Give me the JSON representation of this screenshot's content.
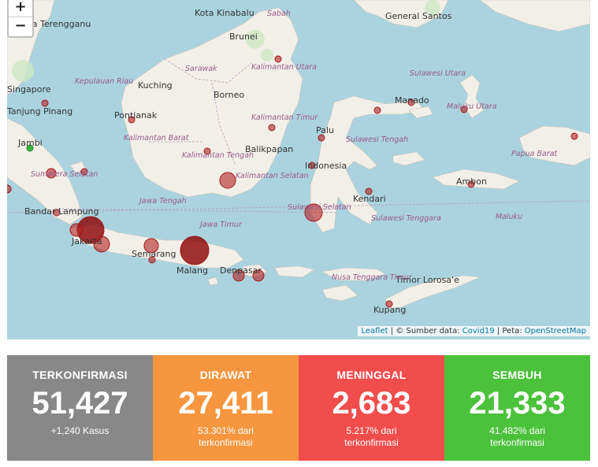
{
  "map": {
    "zoom_in": "+",
    "zoom_out": "−",
    "attribution": {
      "leaflet": "Leaflet",
      "source_text": " | © Sumber data: ",
      "source_link": "Covid19",
      "map_text": " | Peta: ",
      "map_link": "OpenStreetMap"
    },
    "city_labels": [
      "Kota Kinabalu",
      "Sabah",
      "General Santos",
      "ala Terengganu",
      "Brunei",
      "Singapore",
      "Kuching",
      "Borneo",
      "Manado",
      "Tanjung Pinang",
      "Pontianak",
      "Palu",
      "Jambi",
      "Balikpapan",
      "Indonesia",
      "Ambon",
      "Kendari",
      "Bandar Lampung",
      "Jakarta",
      "Semarang",
      "Malang",
      "Denpasar",
      "Timor Lorosa'e",
      "Kupang"
    ],
    "province_labels": [
      "Kepulauan Riau",
      "Sarawak",
      "Kalimantan Utara",
      "Sulawesi Utara",
      "Maluku Utara",
      "Kalimantan Timur",
      "Sulawesi Tengah",
      "Kalimantan Barat",
      "Papua Barat",
      "Kalimantan Tengah",
      "Sumatera Selatan",
      "Kalimantan Selatan",
      "Sulawesi Selatan",
      "Sulawesi Tenggara",
      "Maluku",
      "Jawa Tengah",
      "Jawa Timur",
      "Nusa Tenggara Timur"
    ]
  },
  "stats": [
    {
      "label": "TERKONFIRMASI",
      "value": "51,427",
      "sub": "+1,240 Kasus",
      "color": "#888888"
    },
    {
      "label": "DIRAWAT",
      "value": "27,411",
      "sub": "53.301% dari terkonfirmasi",
      "color": "#f7963e"
    },
    {
      "label": "MENINGGAL",
      "value": "2,683",
      "sub": "5.217% dari terkonfirmasi",
      "color": "#f24d4d"
    },
    {
      "label": "SEMBUH",
      "value": "21,333",
      "sub": "41.482% dari terkonfirmasi",
      "color": "#4cc23c"
    }
  ]
}
